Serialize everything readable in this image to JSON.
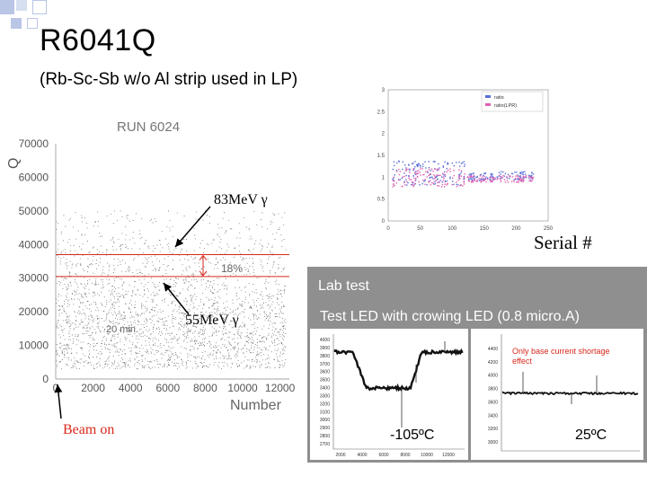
{
  "slide": {
    "title": "R6041Q",
    "subtitle": "(Rb-Sc-Sb w/o Al strip used in LP)",
    "serial_label": "Serial #",
    "lab_test_label": "Lab test",
    "led_test_label": "Test LED with crowing LED (0.8 micro.A)",
    "label_83": "83MeV γ",
    "label_55": "55MeV γ",
    "beam_on": "Beam on",
    "temp_cold": "-105ºC",
    "temp_warm": "25ºC",
    "annotation_right": "Only base current shortage effect",
    "colors": {
      "accent_red": "#d9281c",
      "dots": "#666666",
      "square_blue": "#b9c6e6"
    }
  },
  "chart_data": [
    {
      "type": "scatter",
      "title": "RUN 6024",
      "xlabel": "Number",
      "ylabel": "Q",
      "xlim": [
        0,
        12500
      ],
      "ylim": [
        0,
        70000
      ],
      "x_ticks": [
        "0",
        "2000",
        "4000",
        "6000",
        "8000",
        "10000",
        "12000"
      ],
      "y_ticks": [
        "0",
        "10000",
        "20000",
        "30000",
        "40000",
        "50000",
        "60000",
        "70000"
      ],
      "annotations": [
        "18%",
        "20 min."
      ],
      "bands": [
        {
          "name": "83MeV",
          "y": 37000
        },
        {
          "name": "55MeV",
          "y": 30500
        }
      ]
    },
    {
      "type": "scatter",
      "xlim": [
        0,
        250
      ],
      "ylim": [
        0,
        3
      ],
      "x_ticks": [
        "0",
        "50",
        "100",
        "150",
        "200",
        "250"
      ],
      "y_ticks": [
        "0",
        "0.5",
        "1",
        "1.5",
        "2",
        "2.5",
        "3"
      ],
      "legend": [
        "ratio",
        "ratio(LPR)"
      ],
      "legend_position": "top-right"
    },
    {
      "type": "line",
      "y_ticks": [
        "4000",
        "3900",
        "3800",
        "3700",
        "3600",
        "3500",
        "3400",
        "3300",
        "3200",
        "3100",
        "3000",
        "2900",
        "2800",
        "2700"
      ],
      "x_ticks": [
        "2000",
        "4000",
        "6000",
        "8000",
        "10000",
        "12000"
      ]
    },
    {
      "type": "line",
      "y_ticks": [
        "4400",
        "4200",
        "4000",
        "3800",
        "3600",
        "3400",
        "3200",
        "3000"
      ]
    }
  ]
}
